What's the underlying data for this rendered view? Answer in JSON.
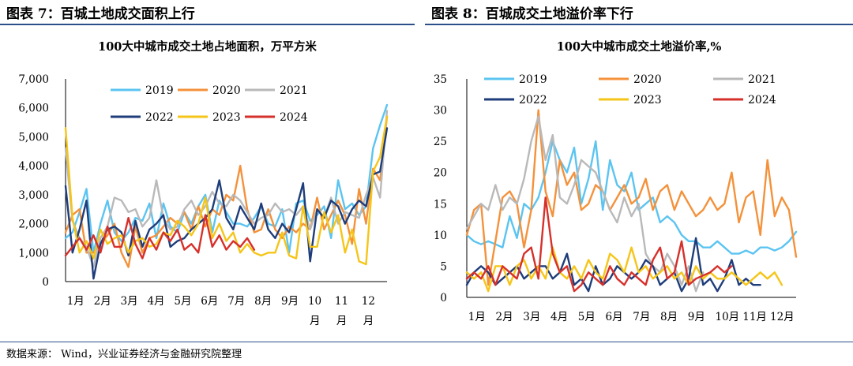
{
  "figure_left": {
    "header": "图表 7：百城土地成交面积上行"
  },
  "figure_right": {
    "header": "图表 8：百城成交土地溢价率下行"
  },
  "source": "数据来源： Wind，兴业证券经济与金融研究院整理",
  "colors": {
    "2019": "#5bc4f1",
    "2020": "#f4913a",
    "2021": "#b9b9b9",
    "2022": "#1f3d7a",
    "2023": "#f5c518",
    "2024": "#d6302b"
  },
  "chart_data": [
    {
      "type": "line",
      "title": "100大中城市成交土地占地面积，万平方米",
      "ylim": [
        0,
        7000
      ],
      "yticks": [
        "0",
        "1,000",
        "2,000",
        "3,000",
        "4,000",
        "5,000",
        "6,000",
        "7,000"
      ],
      "xtick_labels": [
        "1月",
        "2月",
        "3月",
        "4月",
        "5月",
        "6月",
        "7月",
        "8月",
        "9月",
        "10月",
        "11月",
        "12月"
      ],
      "legend_position": "top",
      "series": [
        {
          "name": "2019",
          "values": [
            1500,
            1700,
            2400,
            3200,
            1000,
            2000,
            2800,
            1700,
            1400,
            1700,
            2200,
            2100,
            2700,
            1500,
            2700,
            1900,
            1700,
            2400,
            2000,
            2600,
            3000,
            1700,
            2800,
            2400,
            2000,
            2000,
            1900,
            2200,
            2600,
            2000,
            1900,
            2500,
            1000,
            2700,
            2800,
            2100,
            2300,
            2600,
            1500,
            3500,
            2500,
            2700,
            2300,
            2600,
            4600,
            5400,
            6100
          ]
        },
        {
          "name": "2020",
          "values": [
            1700,
            2300,
            2500,
            1000,
            1000,
            1300,
            1600,
            2000,
            1000,
            500,
            1900,
            1000,
            1500,
            1600,
            1900,
            2200,
            2000,
            2400,
            1800,
            2600,
            1900,
            2500,
            2300,
            3000,
            2800,
            4000,
            2500,
            1700,
            1800,
            2500,
            1800,
            1500,
            1900,
            1700,
            2000,
            1800,
            2900,
            1800,
            2300,
            2800,
            2300,
            1300,
            3200,
            2000,
            3900,
            3500,
            5700
          ]
        },
        {
          "name": "2021",
          "values": [
            4600,
            2100,
            1500,
            1200,
            500,
            1500,
            1900,
            2900,
            2800,
            2400,
            2500,
            1900,
            2200,
            3500,
            2200,
            1800,
            1900,
            2500,
            2800,
            2300,
            2600,
            3100,
            2700,
            2600,
            3000,
            2800,
            2400,
            2000,
            2200,
            2300,
            2700,
            2400,
            2500,
            2300,
            2600,
            1800,
            2500,
            2200,
            2900,
            2000,
            2400,
            2300,
            2200,
            3000,
            3600,
            2900,
            5900
          ]
        },
        {
          "name": "2022",
          "values": [
            3300,
            1000,
            1800,
            2800,
            100,
            1300,
            1800,
            1900,
            1700,
            900,
            2100,
            1200,
            1800,
            2000,
            2300,
            1200,
            1400,
            1500,
            1800,
            2000,
            2200,
            2500,
            3500,
            2200,
            1800,
            2600,
            2200,
            1800,
            2700,
            1800,
            1500,
            2000,
            1700,
            2500,
            3400,
            700,
            2500,
            2200,
            2800,
            2600,
            2000,
            2500,
            2800,
            2600,
            3700,
            3800,
            5300
          ]
        },
        {
          "name": "2023",
          "values": [
            5300,
            2200,
            1000,
            1400,
            800,
            1800,
            1300,
            1500,
            1600,
            1000,
            1400,
            1500,
            1200,
            1300,
            1700,
            1600,
            2100,
            1900,
            1600,
            2000,
            2900,
            1500,
            2000,
            1400,
            1700,
            1000,
            1300,
            1000,
            900,
            1000,
            1000,
            1700,
            900,
            800,
            2600,
            1200,
            1200,
            2400,
            1700,
            2300,
            1000,
            1800,
            700,
            600,
            3800,
            4300,
            5700
          ]
        },
        {
          "name": "2024",
          "values": [
            900,
            1200,
            1500,
            1100,
            1600,
            1000,
            1900,
            1200,
            1200,
            2200,
            1300,
            800,
            1500,
            1100,
            1700,
            1400,
            1800,
            1100,
            1300,
            1000,
            2300,
            1200,
            1600,
            1100,
            1400,
            1200,
            1500,
            1100
          ]
        }
      ]
    },
    {
      "type": "line",
      "title": "100大中城市成交土地溢价率,%",
      "ylim": [
        0,
        35
      ],
      "yticks": [
        "0",
        "5",
        "10",
        "15",
        "20",
        "25",
        "30",
        "35"
      ],
      "xtick_labels": [
        "1月",
        "2月",
        "3月",
        "4月",
        "5月",
        "6月",
        "7月",
        "8月",
        "9月",
        "10月",
        "11月",
        "12月"
      ],
      "legend_position": "top",
      "series": [
        {
          "name": "2019",
          "values": [
            10,
            9,
            8.5,
            9,
            8.5,
            8,
            13,
            9.5,
            15,
            14,
            16,
            20,
            25,
            22,
            20,
            24,
            15,
            19,
            25,
            14,
            22,
            18,
            17,
            20,
            14,
            15,
            16,
            12,
            13,
            12,
            10,
            9,
            9,
            8,
            8,
            9,
            8,
            7,
            7,
            7.5,
            7,
            8,
            8,
            7.5,
            8,
            9,
            10.5
          ]
        },
        {
          "name": "2020",
          "values": [
            10,
            14,
            15,
            2,
            9,
            16,
            17,
            15,
            8,
            14,
            30,
            17,
            13,
            22,
            18,
            20,
            14,
            15,
            18,
            17,
            14,
            16,
            18,
            15,
            16,
            19,
            14,
            17,
            18,
            14,
            17,
            15,
            13,
            14,
            16,
            14,
            15,
            20,
            12,
            16,
            17,
            10,
            22,
            13,
            16,
            14,
            6.5
          ]
        },
        {
          "name": "2021",
          "values": [
            11,
            13,
            15,
            14,
            18,
            14,
            16,
            15,
            19,
            25,
            29,
            22,
            26,
            16,
            15,
            18,
            22,
            21,
            20,
            17,
            14,
            12,
            16,
            13,
            15,
            7,
            5,
            4,
            7,
            5,
            2,
            5,
            1,
            4
          ]
        },
        {
          "name": "2022",
          "values": [
            2,
            4,
            5,
            4,
            2,
            3,
            4,
            5,
            3,
            4,
            5,
            5,
            3,
            4,
            7,
            2,
            3,
            1,
            5,
            2,
            3,
            5,
            4,
            3,
            4,
            6,
            5,
            2,
            3,
            4,
            1,
            3,
            9.5,
            2,
            3,
            1,
            3,
            6,
            2,
            3,
            2,
            2
          ]
        },
        {
          "name": "2023",
          "values": [
            4,
            3,
            4,
            1,
            5,
            5,
            2,
            5,
            6,
            3,
            5,
            3,
            8,
            4,
            3,
            5,
            3,
            6,
            4,
            3,
            7,
            6,
            4,
            8,
            4,
            5,
            3,
            4,
            5,
            3,
            4,
            2,
            5,
            3,
            4,
            3,
            3,
            4,
            3,
            2,
            3,
            4,
            3,
            4,
            2
          ]
        },
        {
          "name": "2024",
          "values": [
            3,
            4,
            3,
            5,
            2,
            5,
            4,
            3,
            7,
            8,
            3,
            16,
            7,
            4,
            5,
            1,
            2,
            4,
            3,
            2,
            5,
            3,
            2,
            4,
            3,
            2,
            6,
            8,
            3,
            4,
            9,
            2,
            3,
            3.5,
            4,
            5,
            4,
            5
          ]
        }
      ]
    }
  ]
}
